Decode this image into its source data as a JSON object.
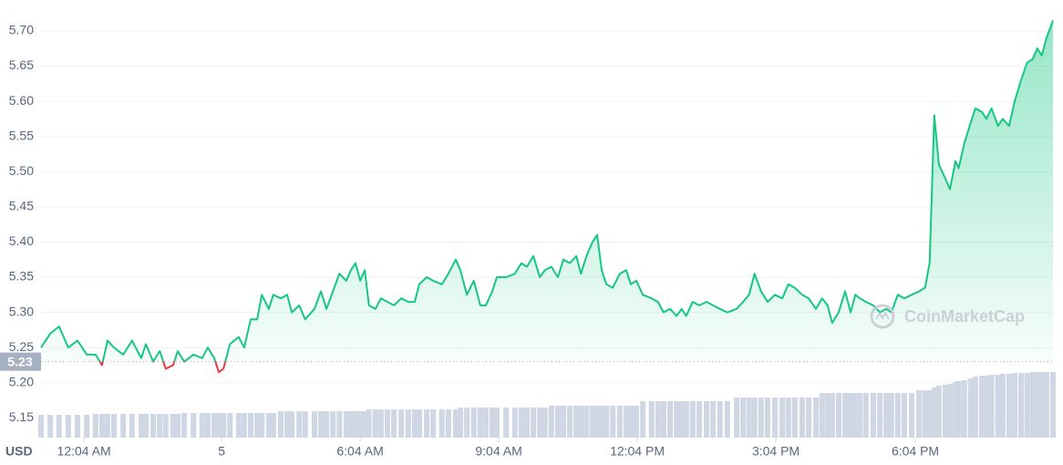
{
  "chart_data": {
    "type": "line",
    "unit": "USD",
    "watermark": "CoinMarketCap",
    "color": "#16c784",
    "down_color": "#ea3943",
    "baseline": 5.23,
    "grid": true,
    "xlim": [
      0,
      21.91
    ],
    "ylim": [
      5.122,
      5.731
    ],
    "xticks": [
      {
        "value": 0.93,
        "label": "12:04 AM"
      },
      {
        "value": 3.91,
        "label": "5"
      },
      {
        "value": 6.91,
        "label": "6:04 AM"
      },
      {
        "value": 9.91,
        "label": "9:04 AM"
      },
      {
        "value": 12.91,
        "label": "12:04 PM"
      },
      {
        "value": 15.91,
        "label": "3:04 PM"
      },
      {
        "value": 18.93,
        "label": "6:04 PM"
      }
    ],
    "yticks": [
      5.15,
      {
        "value": 5.2,
        "label": "5.20"
      },
      5.25,
      {
        "value": 5.3,
        "label": "5.30"
      },
      5.35,
      {
        "value": 5.4,
        "label": "5.40"
      },
      5.45,
      {
        "value": 5.5,
        "label": "5.50"
      },
      5.55,
      {
        "value": 5.6,
        "label": "5.60"
      },
      5.65,
      {
        "value": 5.7,
        "label": "5.70"
      }
    ],
    "x": [
      0,
      0.2,
      0.39,
      0.59,
      0.79,
      0.99,
      1.18,
      1.32,
      1.44,
      1.58,
      1.78,
      1.97,
      2.17,
      2.27,
      2.43,
      2.57,
      2.7,
      2.86,
      2.96,
      3.1,
      3.3,
      3.49,
      3.61,
      3.75,
      3.85,
      3.95,
      4.09,
      4.28,
      4.4,
      4.54,
      4.68,
      4.78,
      4.93,
      5.03,
      5.19,
      5.33,
      5.43,
      5.59,
      5.72,
      5.92,
      6.06,
      6.18,
      6.32,
      6.46,
      6.61,
      6.71,
      6.81,
      6.91,
      7.01,
      7.1,
      7.24,
      7.36,
      7.5,
      7.64,
      7.8,
      7.95,
      8.09,
      8.19,
      8.35,
      8.49,
      8.68,
      8.82,
      8.98,
      9.08,
      9.22,
      9.37,
      9.51,
      9.63,
      9.77,
      9.87,
      10.07,
      10.26,
      10.4,
      10.52,
      10.66,
      10.8,
      10.91,
      11.05,
      11.19,
      11.31,
      11.45,
      11.59,
      11.69,
      11.81,
      11.94,
      12.04,
      12.14,
      12.24,
      12.38,
      12.53,
      12.67,
      12.77,
      12.89,
      13.03,
      13.22,
      13.36,
      13.48,
      13.62,
      13.76,
      13.87,
      13.97,
      14.11,
      14.25,
      14.41,
      14.55,
      14.7,
      14.86,
      15.06,
      15.2,
      15.33,
      15.45,
      15.59,
      15.73,
      15.89,
      16.05,
      16.18,
      16.32,
      16.48,
      16.62,
      16.78,
      16.91,
      17.03,
      17.13,
      17.27,
      17.41,
      17.53,
      17.63,
      17.73,
      17.86,
      18.02,
      18.16,
      18.3,
      18.41,
      18.55,
      18.69,
      18.85,
      19.01,
      19.14,
      19.24,
      19.34,
      19.44,
      19.58,
      19.68,
      19.8,
      19.87,
      19.99,
      20.13,
      20.23,
      20.37,
      20.47,
      20.58,
      20.72,
      20.82,
      20.96,
      21.08,
      21.22,
      21.35,
      21.47,
      21.57,
      21.67,
      21.77,
      21.91
    ],
    "values": [
      5.25,
      5.27,
      5.28,
      5.25,
      5.26,
      5.24,
      5.24,
      5.225,
      5.26,
      5.25,
      5.24,
      5.26,
      5.235,
      5.255,
      5.23,
      5.245,
      5.22,
      5.225,
      5.245,
      5.23,
      5.24,
      5.235,
      5.25,
      5.235,
      5.215,
      5.22,
      5.255,
      5.265,
      5.25,
      5.29,
      5.29,
      5.325,
      5.305,
      5.325,
      5.32,
      5.325,
      5.3,
      5.31,
      5.29,
      5.305,
      5.33,
      5.305,
      5.33,
      5.355,
      5.345,
      5.36,
      5.37,
      5.345,
      5.36,
      5.31,
      5.305,
      5.32,
      5.315,
      5.31,
      5.32,
      5.315,
      5.315,
      5.34,
      5.35,
      5.345,
      5.34,
      5.355,
      5.375,
      5.36,
      5.325,
      5.345,
      5.31,
      5.31,
      5.33,
      5.35,
      5.35,
      5.355,
      5.37,
      5.365,
      5.38,
      5.35,
      5.36,
      5.365,
      5.35,
      5.375,
      5.37,
      5.38,
      5.355,
      5.38,
      5.4,
      5.41,
      5.36,
      5.34,
      5.335,
      5.355,
      5.36,
      5.34,
      5.345,
      5.325,
      5.32,
      5.315,
      5.3,
      5.305,
      5.295,
      5.305,
      5.295,
      5.315,
      5.31,
      5.315,
      5.31,
      5.305,
      5.3,
      5.305,
      5.315,
      5.325,
      5.355,
      5.33,
      5.315,
      5.325,
      5.32,
      5.34,
      5.335,
      5.325,
      5.32,
      5.305,
      5.32,
      5.31,
      5.285,
      5.3,
      5.33,
      5.3,
      5.325,
      5.32,
      5.315,
      5.31,
      5.3,
      5.305,
      5.3,
      5.325,
      5.32,
      5.325,
      5.33,
      5.335,
      5.37,
      5.58,
      5.51,
      5.49,
      5.475,
      5.515,
      5.505,
      5.54,
      5.57,
      5.59,
      5.585,
      5.575,
      5.59,
      5.565,
      5.575,
      5.565,
      5.6,
      5.63,
      5.655,
      5.66,
      5.675,
      5.665,
      5.69,
      5.715
    ],
    "volume_color": "#cfd6e4",
    "volume": [
      25,
      25,
      25,
      25,
      25,
      25,
      26,
      26,
      26,
      26,
      26,
      26,
      26,
      26,
      26,
      26,
      26,
      26,
      26,
      27,
      27,
      27,
      27,
      27,
      27,
      27,
      27,
      27,
      27,
      27,
      27,
      27,
      27,
      27,
      29,
      29,
      29,
      29,
      29,
      29,
      29,
      29,
      29,
      29,
      29,
      29,
      29,
      29,
      29,
      31,
      31,
      31,
      31,
      31,
      31,
      31,
      31,
      31,
      31,
      31,
      31,
      31,
      31,
      33,
      33,
      33,
      33,
      33,
      33,
      33,
      33,
      33,
      33,
      33,
      33,
      33,
      33,
      35,
      35,
      35,
      35,
      35,
      35,
      35,
      35,
      35,
      35,
      35,
      35,
      35,
      35,
      35,
      35,
      40,
      40,
      40,
      40,
      40,
      40,
      40,
      40,
      40,
      40,
      40,
      40,
      40,
      40,
      44,
      44,
      44,
      44,
      44,
      44,
      44,
      44,
      44,
      44,
      44,
      44,
      44,
      49,
      49,
      49,
      49,
      49,
      49,
      49,
      49,
      49,
      49,
      49,
      49,
      49,
      49,
      49,
      49,
      52,
      52,
      52,
      55,
      57,
      58,
      59,
      61,
      62,
      63,
      65,
      67,
      68,
      68,
      69,
      69,
      70,
      70,
      71,
      71,
      71,
      72,
      72,
      72,
      72,
      72
    ]
  }
}
